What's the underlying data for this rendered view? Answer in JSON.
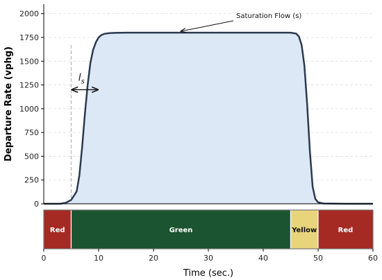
{
  "chart_data": {
    "type": "area",
    "xlabel": "Time (sec.)",
    "ylabel": "Departure Rate (vphg)",
    "xlim": [
      0,
      60
    ],
    "ylim": [
      0,
      2100
    ],
    "xticks": [
      0,
      10,
      20,
      30,
      40,
      50,
      60
    ],
    "yticks": [
      0,
      250,
      500,
      750,
      1000,
      1250,
      1500,
      1750,
      2000
    ],
    "grid": true,
    "colors": {
      "curve": "#2b3a4e",
      "fill": "#dce8f5",
      "grid": "#dddddd",
      "guide": "#bbbbbb"
    },
    "series": [
      {
        "x": [
          0,
          3,
          4,
          5,
          6,
          6.5,
          7,
          7.5,
          8,
          8.5,
          9,
          9.5,
          10,
          10.5,
          11,
          12,
          13,
          15,
          20,
          25,
          30,
          40,
          45,
          46,
          46.5,
          47,
          47.5,
          48,
          48.5,
          49,
          49.5,
          50,
          51,
          55,
          60
        ],
        "y": [
          0,
          0,
          10,
          40,
          130,
          300,
          600,
          950,
          1250,
          1480,
          1620,
          1700,
          1750,
          1775,
          1787,
          1795,
          1798,
          1800,
          1800,
          1800,
          1800,
          1800,
          1800,
          1790,
          1760,
          1670,
          1450,
          1050,
          550,
          180,
          50,
          15,
          3,
          0,
          0
        ]
      }
    ],
    "annotations": {
      "saturation_label": "Saturation Flow (s)",
      "saturation_point": [
        25,
        1800
      ],
      "lost_time_label": "l",
      "lost_time_sub": "s",
      "lost_time_from": 5,
      "lost_time_to": 10,
      "lost_time_arrow_y": 1200
    },
    "phases": [
      {
        "label": "Red",
        "start": 0,
        "end": 5,
        "color": "#a52a23"
      },
      {
        "label": "Green",
        "start": 5,
        "end": 45,
        "color": "#1b5430"
      },
      {
        "label": "Yellow",
        "start": 45,
        "end": 50,
        "color": "#e8d47a"
      },
      {
        "label": "Red",
        "start": 50,
        "end": 60,
        "color": "#a52a23"
      }
    ]
  }
}
